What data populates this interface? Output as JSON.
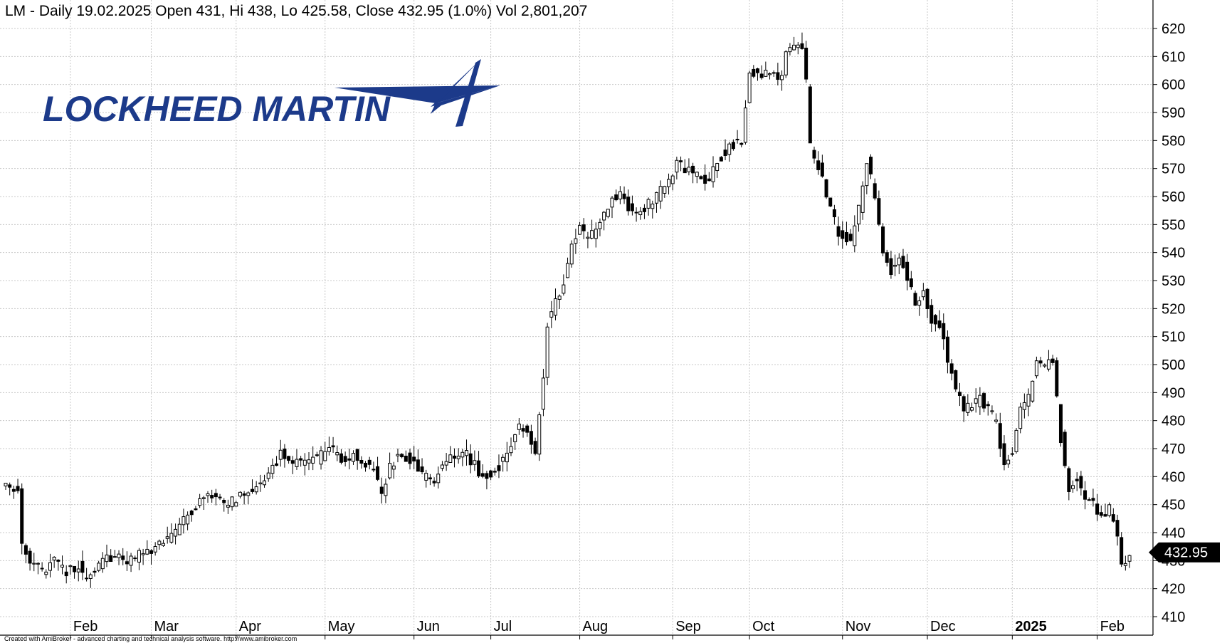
{
  "header": {
    "text": "LM - Daily 19.02.2025 Open 431, Hi 438, Lo 425.58, Close 432.95 (1.0%) Vol 2,801,207"
  },
  "logo": {
    "text": "LOCKHEED MARTIN",
    "color": "#1c3a8a"
  },
  "footer": {
    "text": "Created with AmiBroker - advanced charting and technical analysis software. http://www.amibroker.com"
  },
  "last_price": {
    "label": "432.95",
    "value": 432.95,
    "bg": "#000000"
  },
  "chart_data": {
    "type": "candlestick",
    "symbol": "LM",
    "interval": "Daily",
    "last_bar": {
      "date": "19.02.2025",
      "open": 431,
      "high": 438,
      "low": 425.58,
      "close": 432.95,
      "change_pct": 1.0,
      "volume": 2801207
    },
    "ylim": [
      410,
      620
    ],
    "yticks": [
      410,
      420,
      430,
      440,
      450,
      460,
      470,
      480,
      490,
      500,
      510,
      520,
      530,
      540,
      550,
      560,
      570,
      580,
      590,
      600,
      610,
      620
    ],
    "x_labels": [
      {
        "label": "Feb",
        "bar": 16,
        "bold": false
      },
      {
        "label": "Mar",
        "bar": 36,
        "bold": false
      },
      {
        "label": "Apr",
        "bar": 57,
        "bold": false
      },
      {
        "label": "May",
        "bar": 79,
        "bold": false
      },
      {
        "label": "Jun",
        "bar": 101,
        "bold": false
      },
      {
        "label": "Jul",
        "bar": 120,
        "bold": false
      },
      {
        "label": "Aug",
        "bar": 142,
        "bold": false
      },
      {
        "label": "Sep",
        "bar": 165,
        "bold": false
      },
      {
        "label": "Oct",
        "bar": 184,
        "bold": false
      },
      {
        "label": "Nov",
        "bar": 207,
        "bold": false
      },
      {
        "label": "Dec",
        "bar": 228,
        "bold": false
      },
      {
        "label": "2025",
        "bar": 249,
        "bold": true
      },
      {
        "label": "Feb",
        "bar": 270,
        "bold": false
      }
    ],
    "grid": true,
    "anchors": [
      [
        0,
        458
      ],
      [
        3,
        456
      ],
      [
        4,
        436
      ],
      [
        6,
        430
      ],
      [
        9,
        426
      ],
      [
        12,
        431
      ],
      [
        15,
        426
      ],
      [
        18,
        428
      ],
      [
        20,
        423
      ],
      [
        24,
        430
      ],
      [
        27,
        432
      ],
      [
        30,
        430
      ],
      [
        33,
        432
      ],
      [
        36,
        434
      ],
      [
        39,
        436
      ],
      [
        42,
        440
      ],
      [
        45,
        446
      ],
      [
        48,
        452
      ],
      [
        51,
        453
      ],
      [
        54,
        450
      ],
      [
        57,
        452
      ],
      [
        60,
        454
      ],
      [
        63,
        458
      ],
      [
        66,
        464
      ],
      [
        68,
        468
      ],
      [
        71,
        464
      ],
      [
        74,
        466
      ],
      [
        77,
        466
      ],
      [
        80,
        470
      ],
      [
        83,
        466
      ],
      [
        86,
        468
      ],
      [
        88,
        466
      ],
      [
        91,
        462
      ],
      [
        93,
        454
      ],
      [
        95,
        463
      ],
      [
        97,
        468
      ],
      [
        100,
        466
      ],
      [
        103,
        460
      ],
      [
        106,
        458
      ],
      [
        108,
        465
      ],
      [
        111,
        468
      ],
      [
        114,
        468
      ],
      [
        117,
        462
      ],
      [
        120,
        460
      ],
      [
        123,
        466
      ],
      [
        125,
        472
      ],
      [
        127,
        478
      ],
      [
        129,
        476
      ],
      [
        131,
        470
      ],
      [
        133,
        496
      ],
      [
        134,
        515
      ],
      [
        136,
        522
      ],
      [
        138,
        530
      ],
      [
        140,
        542
      ],
      [
        142,
        548
      ],
      [
        144,
        546
      ],
      [
        146,
        548
      ],
      [
        148,
        554
      ],
      [
        150,
        560
      ],
      [
        152,
        560
      ],
      [
        155,
        554
      ],
      [
        158,
        556
      ],
      [
        161,
        560
      ],
      [
        164,
        566
      ],
      [
        166,
        572
      ],
      [
        168,
        570
      ],
      [
        171,
        568
      ],
      [
        174,
        566
      ],
      [
        176,
        573
      ],
      [
        179,
        578
      ],
      [
        182,
        580
      ],
      [
        184,
        604
      ],
      [
        186,
        604
      ],
      [
        189,
        605
      ],
      [
        191,
        600
      ],
      [
        193,
        610
      ],
      [
        195,
        613
      ],
      [
        197,
        614
      ],
      [
        198,
        600
      ],
      [
        199,
        578
      ],
      [
        201,
        570
      ],
      [
        204,
        556
      ],
      [
        206,
        546
      ],
      [
        209,
        544
      ],
      [
        211,
        556
      ],
      [
        213,
        573
      ],
      [
        215,
        560
      ],
      [
        217,
        540
      ],
      [
        219,
        534
      ],
      [
        221,
        540
      ],
      [
        223,
        530
      ],
      [
        225,
        522
      ],
      [
        227,
        525
      ],
      [
        229,
        516
      ],
      [
        231,
        514
      ],
      [
        233,
        502
      ],
      [
        235,
        490
      ],
      [
        237,
        484
      ],
      [
        239,
        485
      ],
      [
        241,
        488
      ],
      [
        243,
        484
      ],
      [
        245,
        479
      ],
      [
        247,
        465
      ],
      [
        249,
        470
      ],
      [
        251,
        484
      ],
      [
        253,
        488
      ],
      [
        255,
        502
      ],
      [
        257,
        500
      ],
      [
        259,
        500
      ],
      [
        261,
        474
      ],
      [
        263,
        455
      ],
      [
        265,
        460
      ],
      [
        267,
        452
      ],
      [
        269,
        450
      ],
      [
        271,
        446
      ],
      [
        273,
        448
      ],
      [
        275,
        440
      ],
      [
        276,
        428
      ],
      [
        278,
        432
      ]
    ]
  }
}
